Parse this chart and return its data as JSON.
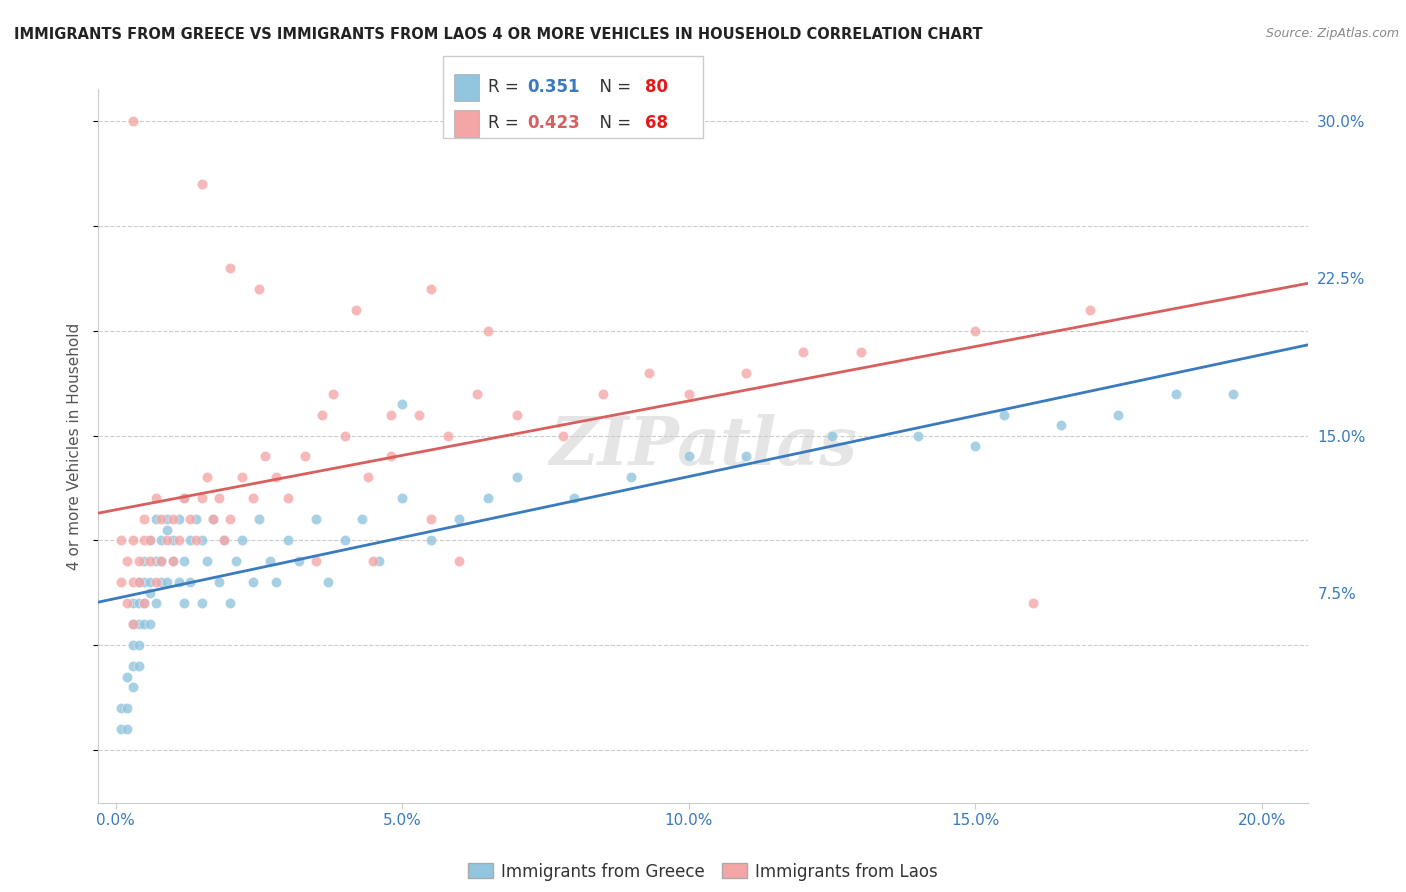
{
  "title": "IMMIGRANTS FROM GREECE VS IMMIGRANTS FROM LAOS 4 OR MORE VEHICLES IN HOUSEHOLD CORRELATION CHART",
  "source": "Source: ZipAtlas.com",
  "ylabel": "4 or more Vehicles in Household",
  "ytick_labels": [
    "7.5%",
    "15.0%",
    "22.5%",
    "30.0%"
  ],
  "ytick_vals": [
    0.075,
    0.15,
    0.225,
    0.3
  ],
  "xtick_vals": [
    0.0,
    0.05,
    0.1,
    0.15,
    0.2
  ],
  "xtick_labels": [
    "0.0%",
    "5.0%",
    "10.0%",
    "15.0%",
    "20.0%"
  ],
  "ylim": [
    -0.025,
    0.315
  ],
  "xlim": [
    -0.003,
    0.208
  ],
  "greece_color": "#92c5de",
  "laos_color": "#f4a6a6",
  "greece_line_color": "#3a7abf",
  "laos_line_color": "#d95f5f",
  "watermark": "ZIPatlas",
  "background_color": "#ffffff",
  "grid_color": "#cccccc",
  "tick_color": "#3a7abf",
  "scatter_size": 55,
  "greece_x": [
    0.001,
    0.001,
    0.002,
    0.002,
    0.002,
    0.003,
    0.003,
    0.003,
    0.003,
    0.004,
    0.004,
    0.004,
    0.004,
    0.004,
    0.005,
    0.005,
    0.005,
    0.005,
    0.006,
    0.006,
    0.006,
    0.007,
    0.007,
    0.007,
    0.008,
    0.008,
    0.008,
    0.009,
    0.009,
    0.01,
    0.01,
    0.011,
    0.011,
    0.012,
    0.012,
    0.013,
    0.013,
    0.014,
    0.015,
    0.015,
    0.016,
    0.017,
    0.018,
    0.019,
    0.02,
    0.021,
    0.022,
    0.024,
    0.025,
    0.027,
    0.028,
    0.03,
    0.032,
    0.035,
    0.037,
    0.04,
    0.043,
    0.046,
    0.05,
    0.055,
    0.06,
    0.065,
    0.07,
    0.08,
    0.09,
    0.1,
    0.11,
    0.125,
    0.14,
    0.155,
    0.165,
    0.175,
    0.185,
    0.195,
    0.003,
    0.006,
    0.009,
    0.012,
    0.15,
    0.05
  ],
  "greece_y": [
    0.02,
    0.01,
    0.035,
    0.01,
    0.02,
    0.04,
    0.06,
    0.05,
    0.07,
    0.04,
    0.06,
    0.07,
    0.05,
    0.08,
    0.06,
    0.07,
    0.08,
    0.09,
    0.06,
    0.08,
    0.1,
    0.07,
    0.09,
    0.11,
    0.08,
    0.1,
    0.09,
    0.08,
    0.11,
    0.09,
    0.1,
    0.08,
    0.11,
    0.09,
    0.12,
    0.1,
    0.08,
    0.11,
    0.07,
    0.1,
    0.09,
    0.11,
    0.08,
    0.1,
    0.07,
    0.09,
    0.1,
    0.08,
    0.11,
    0.09,
    0.08,
    0.1,
    0.09,
    0.11,
    0.08,
    0.1,
    0.11,
    0.09,
    0.12,
    0.1,
    0.11,
    0.12,
    0.13,
    0.12,
    0.13,
    0.14,
    0.14,
    0.15,
    0.15,
    0.16,
    0.155,
    0.16,
    0.17,
    0.17,
    0.03,
    0.075,
    0.105,
    0.07,
    0.145,
    0.165
  ],
  "laos_x": [
    0.001,
    0.001,
    0.002,
    0.002,
    0.003,
    0.003,
    0.003,
    0.004,
    0.004,
    0.005,
    0.005,
    0.005,
    0.006,
    0.006,
    0.007,
    0.007,
    0.008,
    0.008,
    0.009,
    0.01,
    0.01,
    0.011,
    0.012,
    0.013,
    0.014,
    0.015,
    0.016,
    0.017,
    0.018,
    0.019,
    0.02,
    0.022,
    0.024,
    0.026,
    0.028,
    0.03,
    0.033,
    0.036,
    0.04,
    0.044,
    0.048,
    0.053,
    0.058,
    0.063,
    0.07,
    0.078,
    0.085,
    0.093,
    0.1,
    0.11,
    0.12,
    0.13,
    0.15,
    0.17,
    0.015,
    0.025,
    0.035,
    0.045,
    0.055,
    0.065,
    0.038,
    0.048,
    0.06,
    0.02,
    0.042,
    0.055,
    0.16,
    0.003
  ],
  "laos_y": [
    0.08,
    0.1,
    0.07,
    0.09,
    0.06,
    0.08,
    0.1,
    0.08,
    0.09,
    0.07,
    0.1,
    0.11,
    0.09,
    0.1,
    0.08,
    0.12,
    0.09,
    0.11,
    0.1,
    0.09,
    0.11,
    0.1,
    0.12,
    0.11,
    0.1,
    0.12,
    0.13,
    0.11,
    0.12,
    0.1,
    0.11,
    0.13,
    0.12,
    0.14,
    0.13,
    0.12,
    0.14,
    0.16,
    0.15,
    0.13,
    0.14,
    0.16,
    0.15,
    0.17,
    0.16,
    0.15,
    0.17,
    0.18,
    0.17,
    0.18,
    0.19,
    0.19,
    0.2,
    0.21,
    0.27,
    0.22,
    0.09,
    0.09,
    0.11,
    0.2,
    0.17,
    0.16,
    0.09,
    0.23,
    0.21,
    0.22,
    0.07,
    0.3
  ]
}
